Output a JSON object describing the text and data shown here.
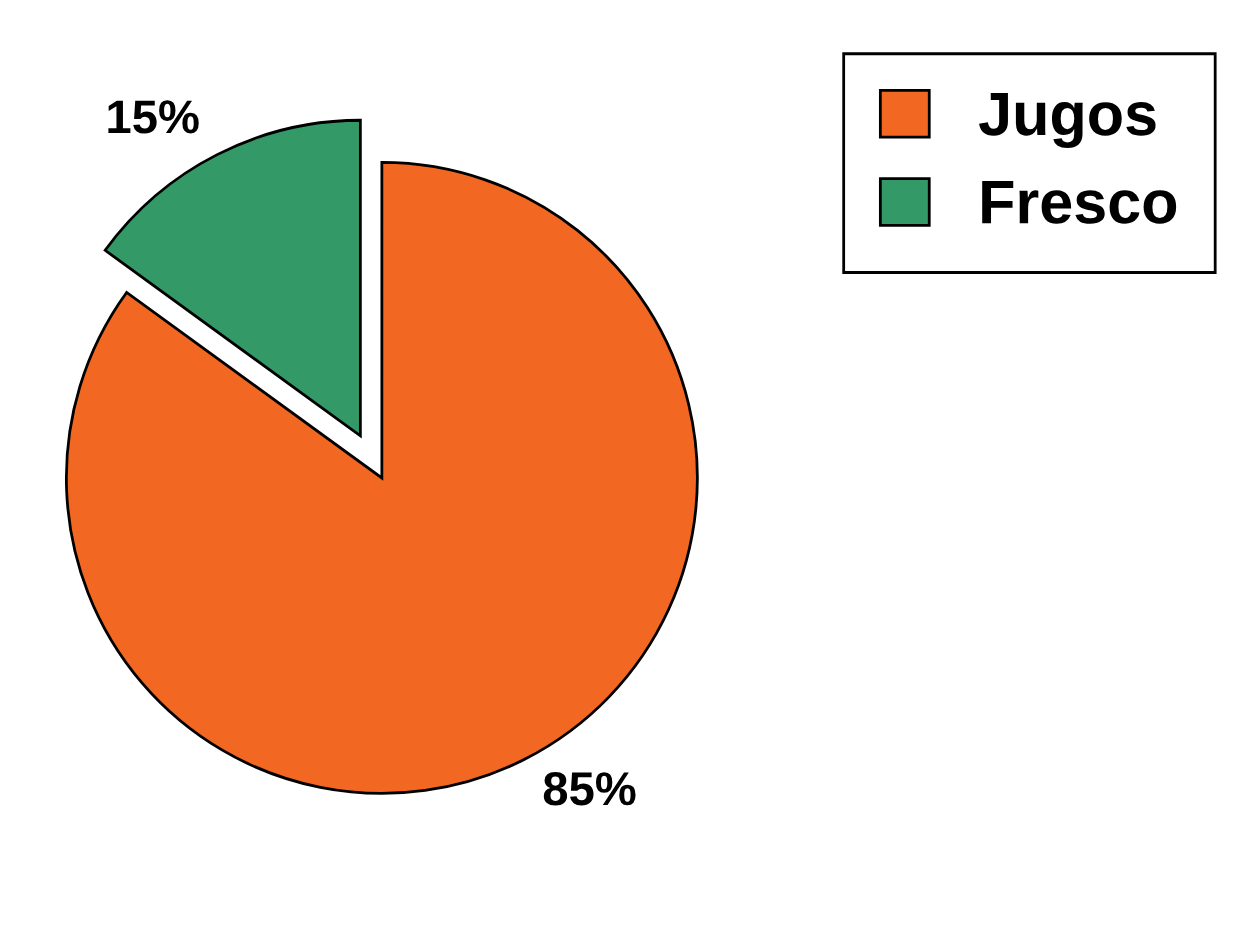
{
  "chart_data": {
    "type": "pie",
    "categories": [
      "Jugos",
      "Fresco"
    ],
    "values": [
      85,
      15
    ],
    "colors": [
      "#f26722",
      "#339966"
    ],
    "value_labels": [
      "85%",
      "15%"
    ],
    "legend": "top right"
  }
}
